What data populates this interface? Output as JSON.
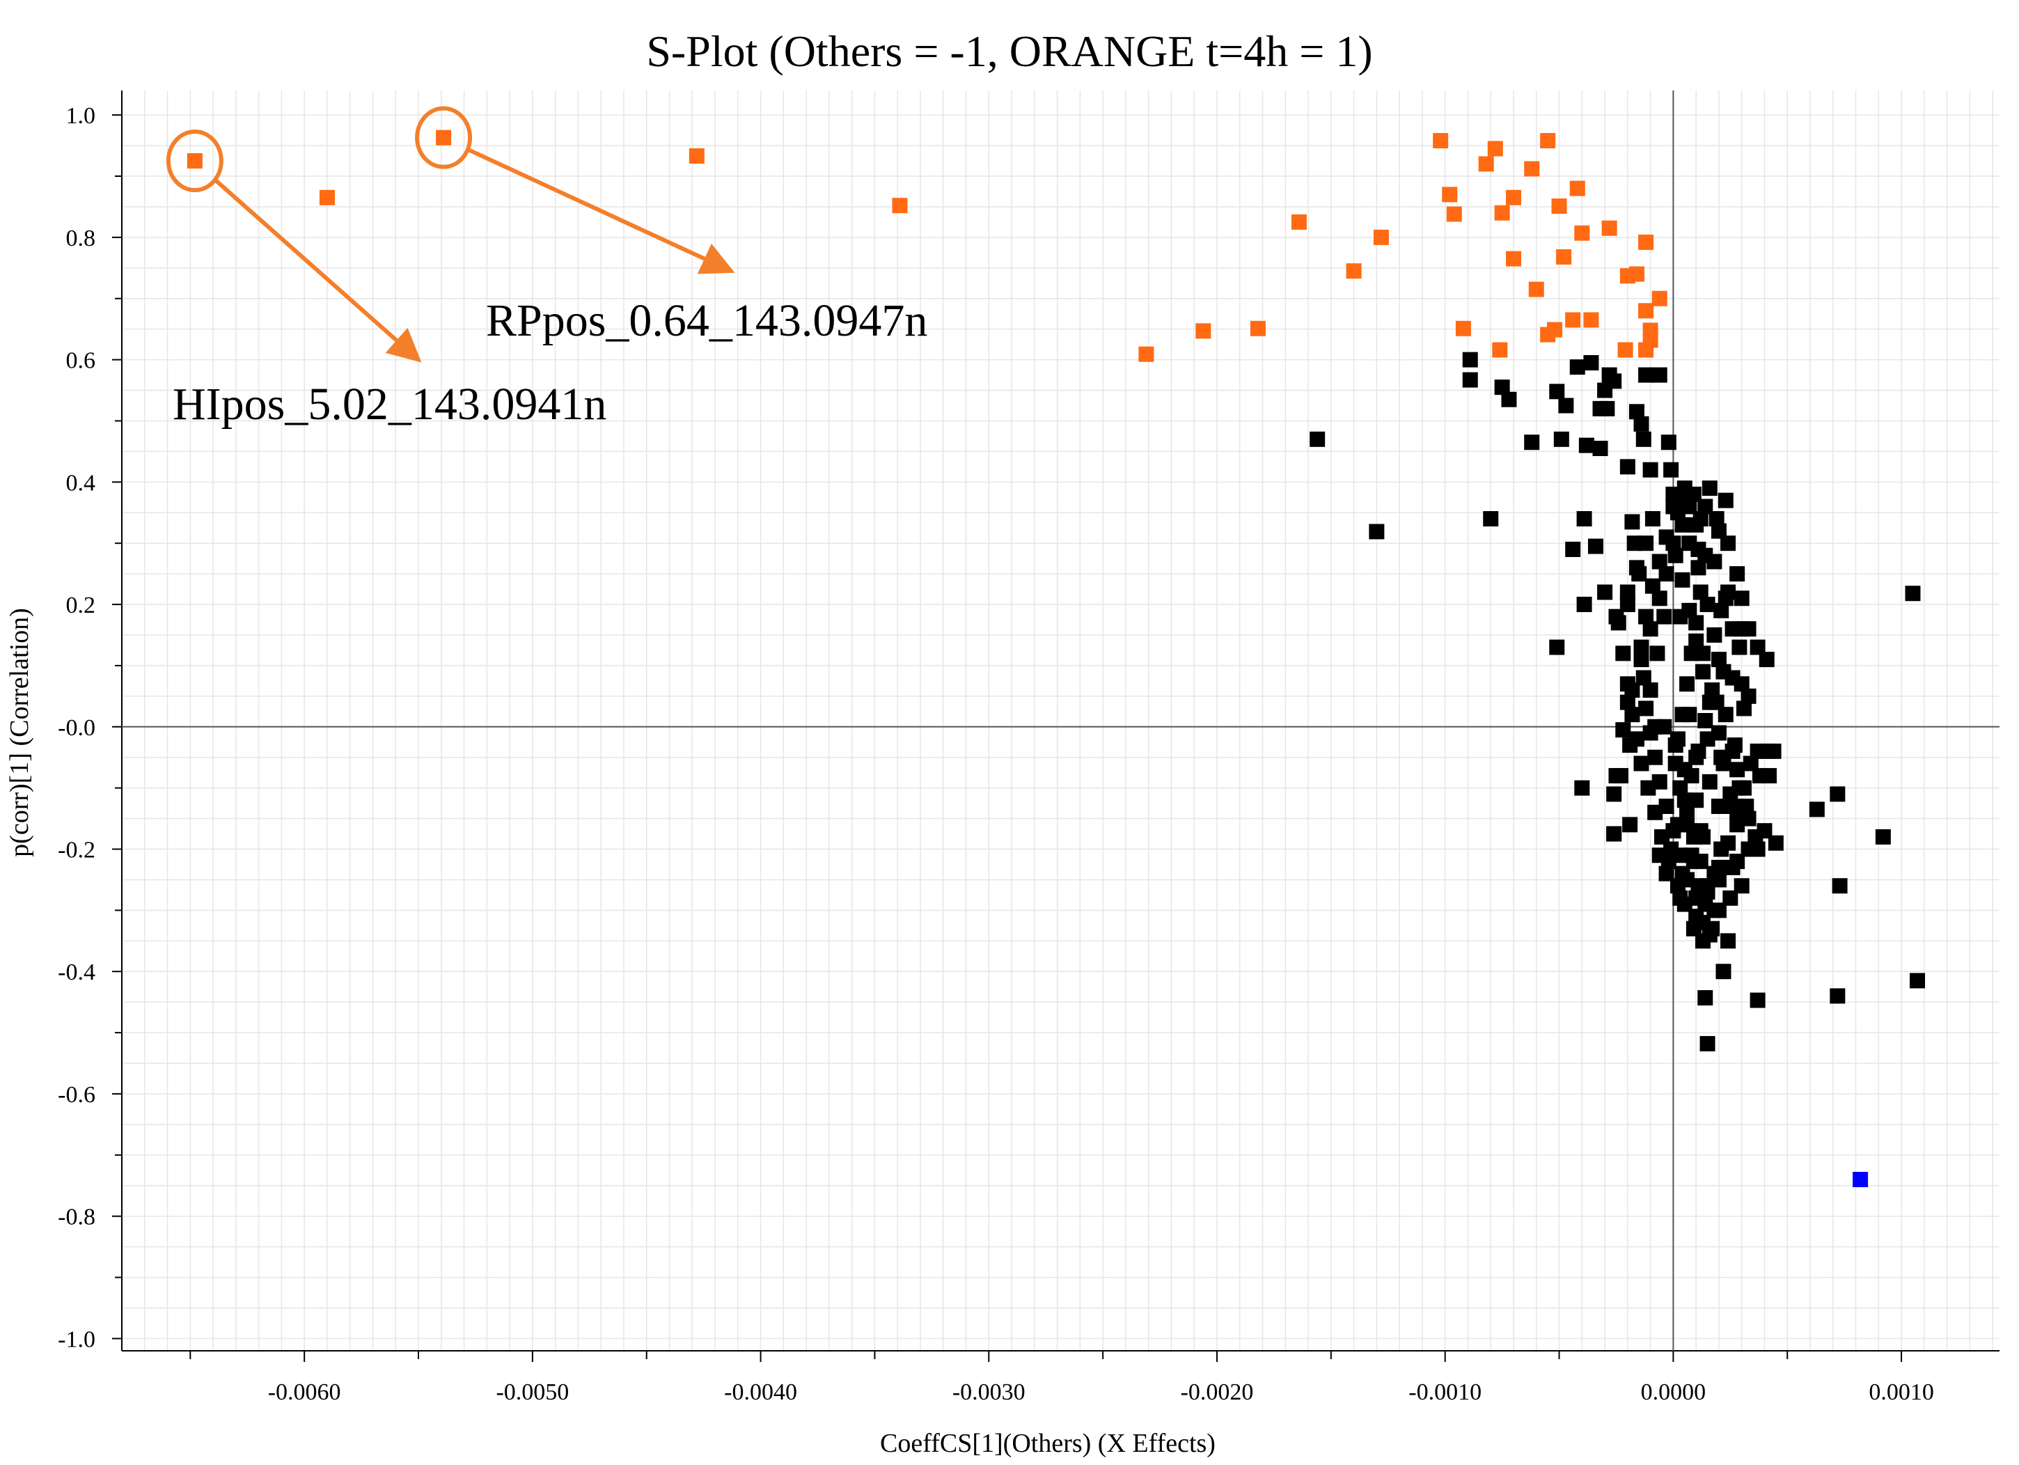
{
  "chart_data": {
    "type": "scatter",
    "title": "S-Plot (Others = -1, ORANGE t=4h = 1)",
    "xlabel": "CoeffCS[1](Others) (X Effects)",
    "ylabel": "p(corr)[1] (Correlation)",
    "xlim": [
      -0.0068,
      0.00143
    ],
    "ylim": [
      -1.02,
      1.04
    ],
    "x_ticks": [
      -0.006,
      -0.005,
      -0.004,
      -0.003,
      -0.002,
      -0.001,
      0.0,
      0.001
    ],
    "x_tick_labels": [
      "-0.0060",
      "-0.0050",
      "-0.0040",
      "-0.0030",
      "-0.0020",
      "-0.0010",
      "0.0000",
      "0.0010"
    ],
    "y_ticks": [
      1.0,
      0.8,
      0.6,
      0.4,
      0.2,
      0.0,
      -0.2,
      -0.4,
      -0.6,
      -0.8,
      -1.0
    ],
    "y_tick_labels": [
      "1.0",
      "0.8",
      "0.6",
      "0.4",
      "0.2",
      "-0.0",
      "-0.2",
      "-0.4",
      "-0.6",
      "-0.8",
      "-1.0"
    ],
    "colors": {
      "orange": "#ff6a13",
      "black": "#000000",
      "blue": "#0000ff",
      "annotation": "#f47f2a"
    },
    "series": [
      {
        "name": "ORANGE t=4h",
        "color": "#ff6a13",
        "points": [
          [
            -0.00648,
            0.925
          ],
          [
            -0.0059,
            0.865
          ],
          [
            -0.00539,
            0.963
          ],
          [
            -0.00428,
            0.933
          ],
          [
            -0.00339,
            0.852
          ],
          [
            -0.00231,
            0.609
          ],
          [
            -0.00206,
            0.647
          ],
          [
            -0.00182,
            0.651
          ],
          [
            -0.00164,
            0.825
          ],
          [
            -0.0014,
            0.745
          ],
          [
            -0.00128,
            0.8
          ],
          [
            -0.00102,
            0.958
          ],
          [
            -0.00098,
            0.87
          ],
          [
            -0.00096,
            0.838
          ],
          [
            -0.00092,
            0.651
          ],
          [
            -0.00082,
            0.92
          ],
          [
            -0.00078,
            0.945
          ],
          [
            -0.00075,
            0.84
          ],
          [
            -0.00076,
            0.616
          ],
          [
            -0.0007,
            0.765
          ],
          [
            -0.0007,
            0.865
          ],
          [
            -0.00062,
            0.912
          ],
          [
            -0.0006,
            0.715
          ],
          [
            -0.00055,
            0.958
          ],
          [
            -0.00055,
            0.641
          ],
          [
            -0.00052,
            0.649
          ],
          [
            -0.0005,
            0.851
          ],
          [
            -0.00048,
            0.768
          ],
          [
            -0.00044,
            0.665
          ],
          [
            -0.00042,
            0.88
          ],
          [
            -0.0004,
            0.807
          ],
          [
            -0.00036,
            0.665
          ],
          [
            -0.00028,
            0.815
          ],
          [
            -0.00021,
            0.616
          ],
          [
            -0.0002,
            0.737
          ],
          [
            -0.00016,
            0.74
          ],
          [
            -0.00012,
            0.792
          ],
          [
            -0.00012,
            0.68
          ],
          [
            -0.0001,
            0.648
          ],
          [
            -0.00012,
            0.616
          ],
          [
            -0.0001,
            0.632
          ],
          [
            -6e-05,
            0.7
          ]
        ]
      },
      {
        "name": "Others",
        "color": "#000000",
        "points": [
          [
            -0.00156,
            0.47
          ],
          [
            -0.0013,
            0.319
          ],
          [
            -0.0008,
            0.34
          ],
          [
            -0.00089,
            0.6
          ],
          [
            -0.00089,
            0.567
          ],
          [
            -0.00075,
            0.555
          ],
          [
            -0.00072,
            0.535
          ],
          [
            -0.00062,
            0.465
          ],
          [
            -0.00051,
            0.548
          ],
          [
            -0.00049,
            0.47
          ],
          [
            -0.00047,
            0.525
          ],
          [
            -0.00044,
            0.29
          ],
          [
            -0.00042,
            0.588
          ],
          [
            -0.00039,
            0.34
          ],
          [
            -0.00039,
            0.2
          ],
          [
            -0.00038,
            0.46
          ],
          [
            -0.00036,
            0.595
          ],
          [
            -0.00034,
            0.295
          ],
          [
            -0.00032,
            0.455
          ],
          [
            -0.0003,
            0.55
          ],
          [
            -0.00029,
            0.52
          ],
          [
            -0.00028,
            0.575
          ],
          [
            -0.00026,
            0.565
          ],
          [
            -0.0002,
            0.425
          ],
          [
            -0.00018,
            0.335
          ],
          [
            -0.00016,
            0.515
          ],
          [
            -0.00014,
            0.495
          ],
          [
            -0.00013,
            0.47
          ],
          [
            -0.00012,
            0.575
          ],
          [
            -6e-05,
            0.575
          ],
          [
            -2e-05,
            0.465
          ],
          [
            0.0,
            0.38
          ],
          [
            -0.00015,
            0.25
          ],
          [
            -0.0002,
            0.2
          ],
          [
            -0.00025,
            0.18
          ],
          [
            -0.00051,
            0.13
          ],
          [
            -0.0003,
            0.22
          ],
          [
            -0.0004,
            -0.1
          ],
          [
            -0.00026,
            -0.11
          ],
          [
            -0.00019,
            -0.16
          ],
          [
            -0.00026,
            -0.175
          ],
          [
            -0.00025,
            -0.08
          ],
          [
            -0.00022,
            -0.005
          ],
          [
            -0.00018,
            0.06
          ],
          [
            -0.00014,
            0.11
          ],
          [
            -0.0001,
            0.16
          ],
          [
            -6e-05,
            0.21
          ],
          [
            -3e-05,
            0.25
          ],
          [
            0.0,
            0.3
          ],
          [
            2e-05,
            0.35
          ],
          [
            5e-05,
            0.39
          ],
          [
            0.0001,
            0.33
          ],
          [
            0.00014,
            0.28
          ],
          [
            0.00012,
            0.22
          ],
          [
            0.0001,
            0.17
          ],
          [
            8e-05,
            0.12
          ],
          [
            6e-05,
            0.07
          ],
          [
            4e-05,
            0.02
          ],
          [
            2e-05,
            -0.02
          ],
          [
            1e-05,
            -0.06
          ],
          [
            3e-05,
            -0.1
          ],
          [
            6e-05,
            -0.14
          ],
          [
            9e-05,
            -0.18
          ],
          [
            0.00012,
            -0.22
          ],
          [
            0.00015,
            -0.26
          ],
          [
            0.00018,
            -0.3
          ],
          [
            0.00016,
            -0.34
          ],
          [
            0.00013,
            -0.32
          ],
          [
            0.0001,
            -0.28
          ],
          [
            6e-05,
            -0.25
          ],
          [
            3e-05,
            -0.21
          ],
          [
            0.0,
            -0.17
          ],
          [
            -3e-05,
            -0.13
          ],
          [
            -6e-05,
            -0.09
          ],
          [
            -8e-05,
            -0.05
          ],
          [
            -0.0001,
            -0.01
          ],
          [
            -0.00012,
            0.03
          ],
          [
            -0.00013,
            0.08
          ],
          [
            -0.00014,
            0.13
          ],
          [
            -0.00012,
            0.18
          ],
          [
            -9e-05,
            0.23
          ],
          [
            -6e-05,
            0.27
          ],
          [
            -3e-05,
            0.31
          ],
          [
            1e-05,
            0.28
          ],
          [
            4e-05,
            0.24
          ],
          [
            7e-05,
            0.19
          ],
          [
            0.0001,
            0.14
          ],
          [
            0.00013,
            0.09
          ],
          [
            0.00016,
            0.04
          ],
          [
            0.0002,
            -0.01
          ],
          [
            0.00022,
            -0.06
          ],
          [
            0.00025,
            -0.11
          ],
          [
            0.00028,
            -0.16
          ],
          [
            0.00021,
            -0.2
          ],
          [
            0.00018,
            -0.24
          ],
          [
            0.00014,
            -0.29
          ],
          [
            0.0001,
            -0.31
          ],
          [
            5e-05,
            -0.29
          ],
          [
            2e-05,
            -0.26
          ],
          [
            -2e-05,
            -0.22
          ],
          [
            -5e-05,
            -0.18
          ],
          [
            -8e-05,
            -0.14
          ],
          [
            -0.00011,
            -0.1
          ],
          [
            -0.00014,
            -0.06
          ],
          [
            -0.00016,
            -0.02
          ],
          [
            -0.00018,
            0.02
          ],
          [
            -0.0002,
            0.07
          ],
          [
            -0.00022,
            0.12
          ],
          [
            -0.00024,
            0.17
          ],
          [
            -0.0002,
            0.22
          ],
          [
            -0.00016,
            0.26
          ],
          [
            -0.00012,
            0.3
          ],
          [
            0.0,
            0.36
          ],
          [
            6e-05,
            0.37
          ],
          [
            0.0002,
            0.32
          ],
          [
            0.00018,
            0.27
          ],
          [
            0.00023,
            0.21
          ],
          [
            0.00026,
            0.16
          ],
          [
            0.0002,
            0.11
          ],
          [
            0.00017,
            0.06
          ],
          [
            0.00014,
            0.01
          ],
          [
            0.00011,
            -0.04
          ],
          [
            8e-05,
            -0.08
          ],
          [
            5e-05,
            -0.12
          ],
          [
            2e-05,
            -0.16
          ],
          [
            -1e-05,
            -0.2
          ],
          [
            0.0002,
            -0.23
          ],
          [
            0.00024,
            -0.19
          ],
          [
            0.00028,
            -0.14
          ],
          [
            0.00031,
            -0.1
          ],
          [
            0.00034,
            -0.06
          ],
          [
            0.00037,
            -0.04
          ],
          [
            0.00044,
            -0.04
          ],
          [
            0.00042,
            -0.08
          ],
          [
            0.00032,
            -0.13
          ],
          [
            0.00036,
            -0.18
          ],
          [
            0.00028,
            -0.22
          ],
          [
            0.0003,
            -0.26
          ],
          [
            0.00025,
            -0.28
          ],
          [
            0.0004,
            -0.17
          ],
          [
            0.00045,
            -0.19
          ],
          [
            0.00037,
            -0.2
          ],
          [
            0.00033,
            -0.15
          ],
          [
            0.00029,
            -0.1
          ],
          [
            0.00026,
            -0.04
          ],
          [
            0.00023,
            0.02
          ],
          [
            0.00026,
            0.08
          ],
          [
            0.00029,
            0.13
          ],
          [
            0.00033,
            0.16
          ],
          [
            0.0003,
            0.21
          ],
          [
            0.00028,
            0.25
          ],
          [
            0.00024,
            0.3
          ],
          [
            0.00019,
            0.34
          ],
          [
            0.00014,
            0.36
          ],
          [
            9e-05,
            0.38
          ],
          [
            4e-05,
            0.33
          ],
          [
            -4e-05,
            0.18
          ],
          [
            -7e-05,
            0.12
          ],
          [
            -0.0001,
            0.06
          ],
          [
            -4e-05,
            0.0
          ],
          [
            1e-05,
            -0.03
          ],
          [
            5e-05,
            -0.07
          ],
          [
            0.0001,
            -0.12
          ],
          [
            0.00016,
            -0.09
          ],
          [
            0.00021,
            -0.05
          ],
          [
            0.00012,
            -0.17
          ],
          [
            8e-05,
            -0.21
          ],
          [
            4e-05,
            -0.24
          ],
          [
            0.00013,
            -0.35
          ],
          [
            0.00017,
            -0.33
          ],
          [
            0.0002,
            -0.25
          ],
          [
            0.00027,
            -0.03
          ],
          [
            0.00018,
            0.15
          ],
          [
            0.00015,
            0.2
          ],
          [
            0.00011,
            0.26
          ],
          [
            7e-05,
            0.3
          ],
          [
            -9e-05,
            0.34
          ],
          [
            -0.00017,
            0.3
          ],
          [
            -0.0001,
            0.42
          ],
          [
            -1e-05,
            0.42
          ],
          [
            -8e-05,
            0.0
          ],
          [
            -0.00019,
            -0.03
          ],
          [
            -0.00023,
            -0.08
          ],
          [
            -6e-05,
            -0.21
          ],
          [
            -0.0002,
            0.04
          ],
          [
            0.00022,
            0.09
          ],
          [
            0.00033,
            0.05
          ],
          [
            0.00038,
            -0.08
          ],
          [
            0.0002,
            -0.13
          ],
          [
            0.00015,
            -0.27
          ],
          [
            9e-05,
            -0.33
          ],
          [
            3e-05,
            -0.28
          ],
          [
            -3e-05,
            -0.24
          ],
          [
            0.00024,
            -0.35
          ],
          [
            0.0002,
            -0.3
          ],
          [
            0.00028,
            -0.07
          ],
          [
            0.00031,
            0.03
          ],
          [
            0.00024,
            0.22
          ],
          [
            0.0003,
            0.16
          ],
          [
            0.00037,
            0.13
          ],
          [
            0.00041,
            0.11
          ],
          [
            0.0003,
            0.07
          ],
          [
            0.00021,
            0.19
          ],
          [
            0.00011,
            0.29
          ],
          [
            0.00012,
            0.34
          ],
          [
            7e-05,
            0.36
          ],
          [
            0.00016,
            0.39
          ],
          [
            0.00023,
            0.37
          ],
          [
            3e-05,
            0.18
          ],
          [
            0.00013,
            0.12
          ],
          [
            0.00019,
            0.04
          ],
          [
            0.00015,
            -0.02
          ],
          [
            0.0001,
            -0.05
          ],
          [
            7e-05,
            0.02
          ],
          [
            0.00013,
            -0.18
          ],
          [
            9e-05,
            -0.22
          ],
          [
            6e-05,
            -0.16
          ],
          [
            0.00011,
            -0.26
          ],
          [
            0.00026,
            -0.23
          ],
          [
            0.00033,
            -0.2
          ],
          [
            0.00026,
            -0.13
          ],
          [
            0.00041,
            -0.04
          ],
          [
            0.00063,
            -0.135
          ],
          [
            0.00072,
            -0.11
          ],
          [
            0.00073,
            -0.26
          ],
          [
            0.00092,
            -0.18
          ],
          [
            0.00105,
            0.218
          ],
          [
            0.00107,
            -0.415
          ],
          [
            0.00072,
            -0.44
          ],
          [
            0.00037,
            -0.447
          ],
          [
            0.00022,
            -0.4
          ],
          [
            0.00014,
            -0.443
          ],
          [
            0.00015,
            -0.518
          ],
          [
            -0.00026,
            -0.175
          ],
          [
            -0.00032,
            0.52
          ]
        ]
      },
      {
        "name": "Blue",
        "color": "#0000ff",
        "points": [
          [
            0.00082,
            -0.74
          ]
        ]
      }
    ],
    "annotations": [
      {
        "label": "HIpos_5.02_143.0941n",
        "x": -0.00648,
        "y": 0.925,
        "arrow_to": [
          -0.0055,
          0.6
        ]
      },
      {
        "label": "RPpos_0.64_143.0947n",
        "x": -0.00539,
        "y": 0.963,
        "arrow_to": [
          -0.00413,
          0.745
        ]
      }
    ]
  }
}
